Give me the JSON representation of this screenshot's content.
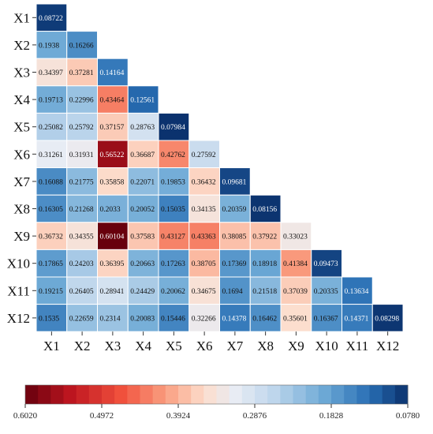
{
  "chart_data": {
    "type": "heatmap",
    "title": "",
    "xlabel": "",
    "ylabel": "",
    "rows": [
      "X1",
      "X2",
      "X3",
      "X4",
      "X5",
      "X6",
      "X7",
      "X8",
      "X9",
      "X10",
      "X11",
      "X12"
    ],
    "columns": [
      "X1",
      "X2",
      "X3",
      "X4",
      "X5",
      "X6",
      "X7",
      "X8",
      "X9",
      "X10",
      "X11",
      "X12"
    ],
    "layout": "lower-triangular",
    "values": [
      [
        "0.08722"
      ],
      [
        "0.1938",
        "0.16266"
      ],
      [
        "0.34397",
        "0.37281",
        "0.14164"
      ],
      [
        "0.19713",
        "0.22996",
        "0.43464",
        "0.12561"
      ],
      [
        "0.25082",
        "0.25792",
        "0.37157",
        "0.28763",
        "0.07984"
      ],
      [
        "0.31261",
        "0.31931",
        "0.56522",
        "0.36687",
        "0.42762",
        "0.27592"
      ],
      [
        "0.16088",
        "0.21775",
        "0.35858",
        "0.22071",
        "0.19853",
        "0.36432",
        "0.09681"
      ],
      [
        "0.16305",
        "0.21268",
        "0.2033",
        "0.20052",
        "0.15035",
        "0.34135",
        "0.20359",
        "0.08156"
      ],
      [
        "0.36732",
        "0.34355",
        "0.60104",
        "0.37583",
        "0.43127",
        "0.43363",
        "0.38085",
        "0.37922",
        "0.33023"
      ],
      [
        "0.17865",
        "0.24203",
        "0.36395",
        "0.20663",
        "0.17263",
        "0.38705",
        "0.17369",
        "0.18918",
        "0.41384",
        "0.09473"
      ],
      [
        "0.19215",
        "0.26405",
        "0.28941",
        "0.24429",
        "0.20062",
        "0.34675",
        "0.1694",
        "0.21518",
        "0.37039",
        "0.20335",
        "0.13634"
      ],
      [
        "0.1535",
        "0.22659",
        "0.2314",
        "0.20083",
        "0.15446",
        "0.32266",
        "0.14378",
        "0.16462",
        "0.35601",
        "0.16367",
        "0.14371",
        "0.08298"
      ]
    ],
    "colorbar": {
      "min": 0.078,
      "max": 0.602,
      "direction": "high-left",
      "ticks": [
        "0.6020",
        "0.4972",
        "0.3924",
        "0.2876",
        "0.1828",
        "0.0780"
      ],
      "colormap": "RdBu"
    }
  }
}
